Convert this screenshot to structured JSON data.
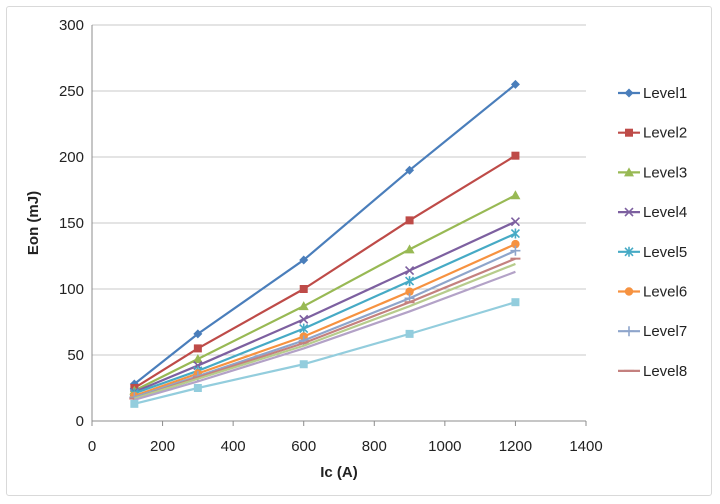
{
  "chart_data": {
    "type": "line",
    "title": "",
    "xlabel": "Ic (A)",
    "ylabel": "Eon (mJ)",
    "xlim": [
      0,
      1400
    ],
    "ylim": [
      0,
      300
    ],
    "xticks": [
      0,
      200,
      400,
      600,
      800,
      1000,
      1200,
      1400
    ],
    "yticks": [
      0,
      50,
      100,
      150,
      200,
      250,
      300
    ],
    "grid": "horizontal",
    "legend_position": "right",
    "x": [
      120,
      300,
      600,
      900,
      1200
    ],
    "series": [
      {
        "name": "Level1",
        "color": "#4a7ebb",
        "marker": "diamond",
        "values": [
          28,
          66,
          122,
          190,
          255
        ]
      },
      {
        "name": "Level2",
        "color": "#be4b48",
        "marker": "square",
        "values": [
          25,
          55,
          100,
          152,
          201
        ]
      },
      {
        "name": "Level3",
        "color": "#98b954",
        "marker": "triangle",
        "values": [
          23,
          47,
          87,
          130,
          171
        ]
      },
      {
        "name": "Level4",
        "color": "#7d60a0",
        "marker": "x",
        "values": [
          22,
          42,
          77,
          114,
          151
        ]
      },
      {
        "name": "Level5",
        "color": "#46aac5",
        "marker": "star",
        "values": [
          21,
          38,
          70,
          106,
          142
        ]
      },
      {
        "name": "Level6",
        "color": "#f69240",
        "marker": "circle",
        "values": [
          19,
          36,
          64,
          98,
          134
        ]
      },
      {
        "name": "Level7",
        "color": "#8ea5cb",
        "marker": "plus",
        "values": [
          18,
          34,
          61,
          93,
          129
        ]
      },
      {
        "name": "Level8",
        "color": "#c4817f",
        "marker": "dash",
        "values": [
          17,
          33,
          59,
          90,
          123
        ]
      },
      {
        "name": "",
        "color": "#b7cc8c",
        "marker": "none",
        "values": [
          17,
          32,
          57,
          87,
          119
        ]
      },
      {
        "name": "",
        "color": "#b3a2c7",
        "marker": "none",
        "values": [
          16,
          30,
          55,
          83,
          113
        ]
      },
      {
        "name": "",
        "color": "#93cddd",
        "marker": "square",
        "values": [
          13,
          25,
          43,
          66,
          90
        ]
      }
    ]
  }
}
